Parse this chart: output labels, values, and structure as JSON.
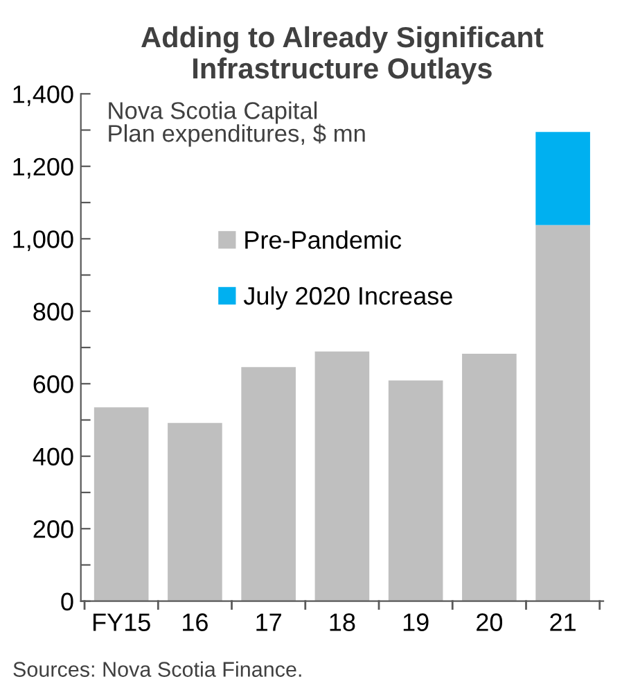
{
  "chart_data": {
    "type": "bar",
    "title": "Adding to Already Significant\nInfrastructure Outlays",
    "categories": [
      "FY15",
      "16",
      "17",
      "18",
      "19",
      "20",
      "21"
    ],
    "stacked": true,
    "series": [
      {
        "name": "Pre-Pandemic",
        "color": "#bfbfbf",
        "values": [
          535,
          492,
          646,
          689,
          609,
          683,
          1038
        ]
      },
      {
        "name": "July 2020 Increase",
        "color": "#00b0f0",
        "values": [
          null,
          null,
          null,
          null,
          null,
          null,
          257
        ]
      }
    ],
    "ylim": [
      0,
      1400
    ],
    "yticks": [
      0,
      {
        "value": 100,
        "label": null
      },
      200,
      {
        "value": 300,
        "label": null
      },
      400,
      {
        "value": 500,
        "label": null
      },
      600,
      {
        "value": 700,
        "label": null
      },
      800,
      {
        "value": 900,
        "label": null
      },
      {
        "value": 1000,
        "label": "1,000"
      },
      {
        "value": 1100,
        "label": null
      },
      {
        "value": 1200,
        "label": "1,200"
      },
      {
        "value": 1300,
        "label": null
      },
      {
        "value": 1400,
        "label": "1,400"
      }
    ],
    "grid": false,
    "legend": "top",
    "annotations": [
      "Nova Scotia Capital\nPlan expenditures, $ mn",
      "Sources: Nova Scotia Finance."
    ]
  }
}
